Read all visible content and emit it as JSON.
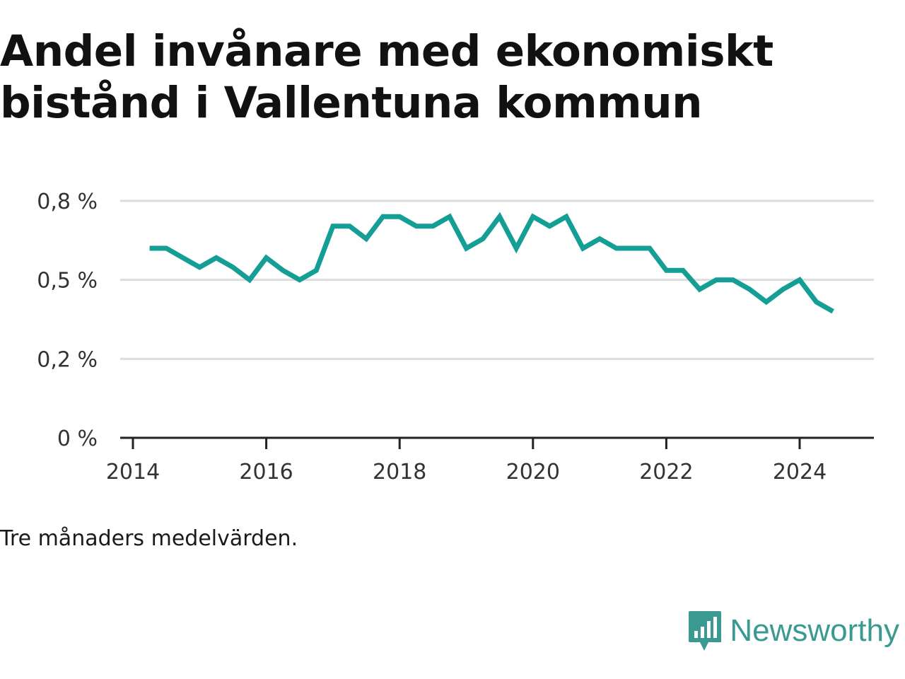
{
  "title": "Andel invånare med ekonomiskt bistånd i Vallentuna kommun",
  "note": "Tre månaders medelvärden.",
  "brand": {
    "name": "Newsworthy",
    "icon": "newsworthy-logo-icon",
    "color": "#3a9a92"
  },
  "chart_data": {
    "type": "line",
    "title": "Andel invånare med ekonomiskt bistånd i Vallentuna kommun",
    "xlabel": "",
    "ylabel": "",
    "x_ticks": [
      "2014",
      "2016",
      "2018",
      "2020",
      "2022",
      "2024"
    ],
    "y_ticks": [
      "0 %",
      "0,2 %",
      "0,5 %",
      "0,8 %"
    ],
    "ylim": [
      0,
      0.75
    ],
    "xlim": [
      "2013-12",
      "2025-04"
    ],
    "grid": true,
    "legend": "none",
    "color": "#149e95",
    "series": [
      {
        "x": [
          "2014-04",
          "2014-07",
          "2014-10",
          "2015-01",
          "2015-04",
          "2015-07",
          "2015-10",
          "2016-01",
          "2016-04",
          "2016-07",
          "2016-10",
          "2017-01",
          "2017-04",
          "2017-07",
          "2017-10",
          "2018-01",
          "2018-04",
          "2018-07",
          "2018-10",
          "2019-01",
          "2019-04",
          "2019-07",
          "2019-10",
          "2020-01",
          "2020-04",
          "2020-07",
          "2020-10",
          "2021-01",
          "2021-04",
          "2021-07",
          "2021-10",
          "2022-01",
          "2022-04",
          "2022-07",
          "2022-10",
          "2023-01",
          "2023-04",
          "2023-07",
          "2023-10",
          "2024-01",
          "2024-04",
          "2024-07"
        ],
        "values": [
          0.6,
          0.6,
          0.57,
          0.54,
          0.57,
          0.54,
          0.5,
          0.57,
          0.53,
          0.5,
          0.53,
          0.67,
          0.67,
          0.63,
          0.7,
          0.7,
          0.67,
          0.67,
          0.7,
          0.6,
          0.63,
          0.7,
          0.6,
          0.7,
          0.67,
          0.7,
          0.6,
          0.63,
          0.6,
          0.6,
          0.6,
          0.53,
          0.53,
          0.47,
          0.5,
          0.5,
          0.47,
          0.43,
          0.47,
          0.5,
          0.43,
          0.4
        ]
      }
    ]
  }
}
